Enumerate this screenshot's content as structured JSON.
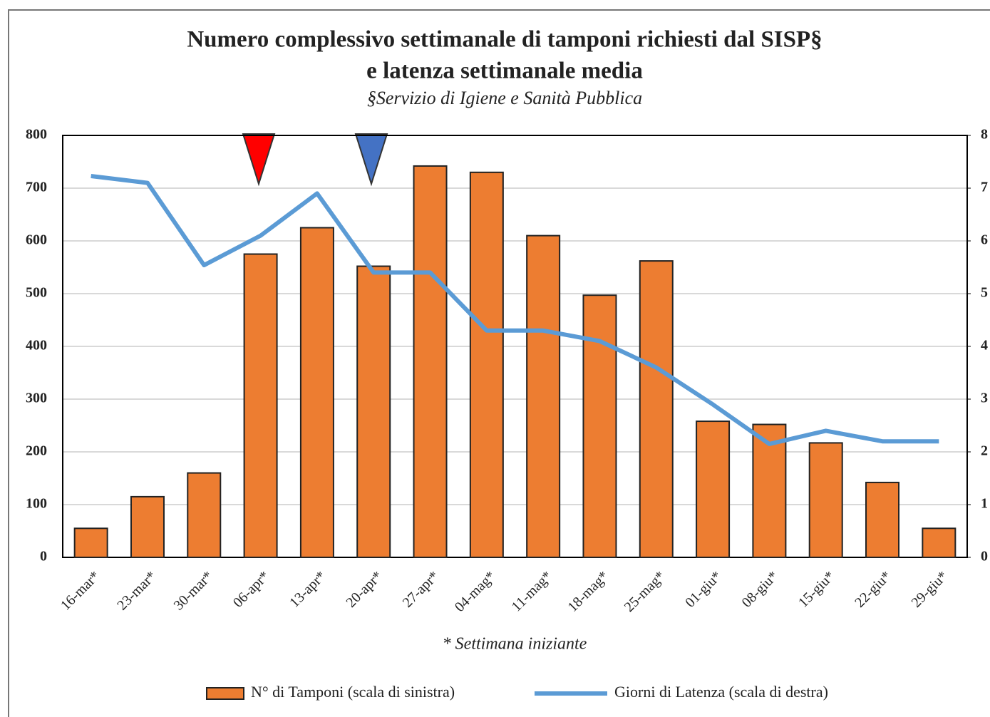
{
  "chart_data": {
    "type": "bar",
    "title": [
      "Numero complessivo settimanale di tamponi richiesti dal SISP§",
      "e latenza settimanale media"
    ],
    "subtitle": "§Servizio di Igiene e Sanità Pubblica",
    "footnote": "* Settimana iniziante",
    "categories": [
      "16-mar*",
      "23-mar*",
      "30-mar*",
      "06-apr*",
      "13-apr*",
      "20-apr*",
      "27-apr*",
      "04-mag*",
      "11-mag*",
      "18-mag*",
      "25-mag*",
      "01-giu*",
      "08-giu*",
      "15-giu*",
      "22-giu*",
      "29-giu*"
    ],
    "series": [
      {
        "name": "N° di Tamponi (scala di sinistra)",
        "type": "bar",
        "color": "#ED7D31",
        "axis": "y",
        "values": [
          55,
          115,
          160,
          575,
          625,
          552,
          742,
          730,
          610,
          497,
          562,
          258,
          252,
          217,
          142,
          55
        ]
      },
      {
        "name": "Giorni di Latenza (scala di destra)",
        "type": "line",
        "color": "#5B9BD5",
        "axis": "y2",
        "values": [
          7.23,
          7.1,
          5.54,
          6.1,
          6.9,
          5.4,
          5.4,
          4.3,
          4.3,
          4.1,
          3.6,
          2.9,
          2.15,
          2.4,
          2.2,
          2.2
        ]
      }
    ],
    "ylim": [
      0,
      800
    ],
    "yticks": [
      0,
      100,
      200,
      300,
      400,
      500,
      600,
      700,
      800
    ],
    "y2lim": [
      0,
      8
    ],
    "y2ticks": [
      0,
      1,
      2,
      3,
      4,
      5,
      6,
      7,
      8
    ],
    "grid": true
  }
}
